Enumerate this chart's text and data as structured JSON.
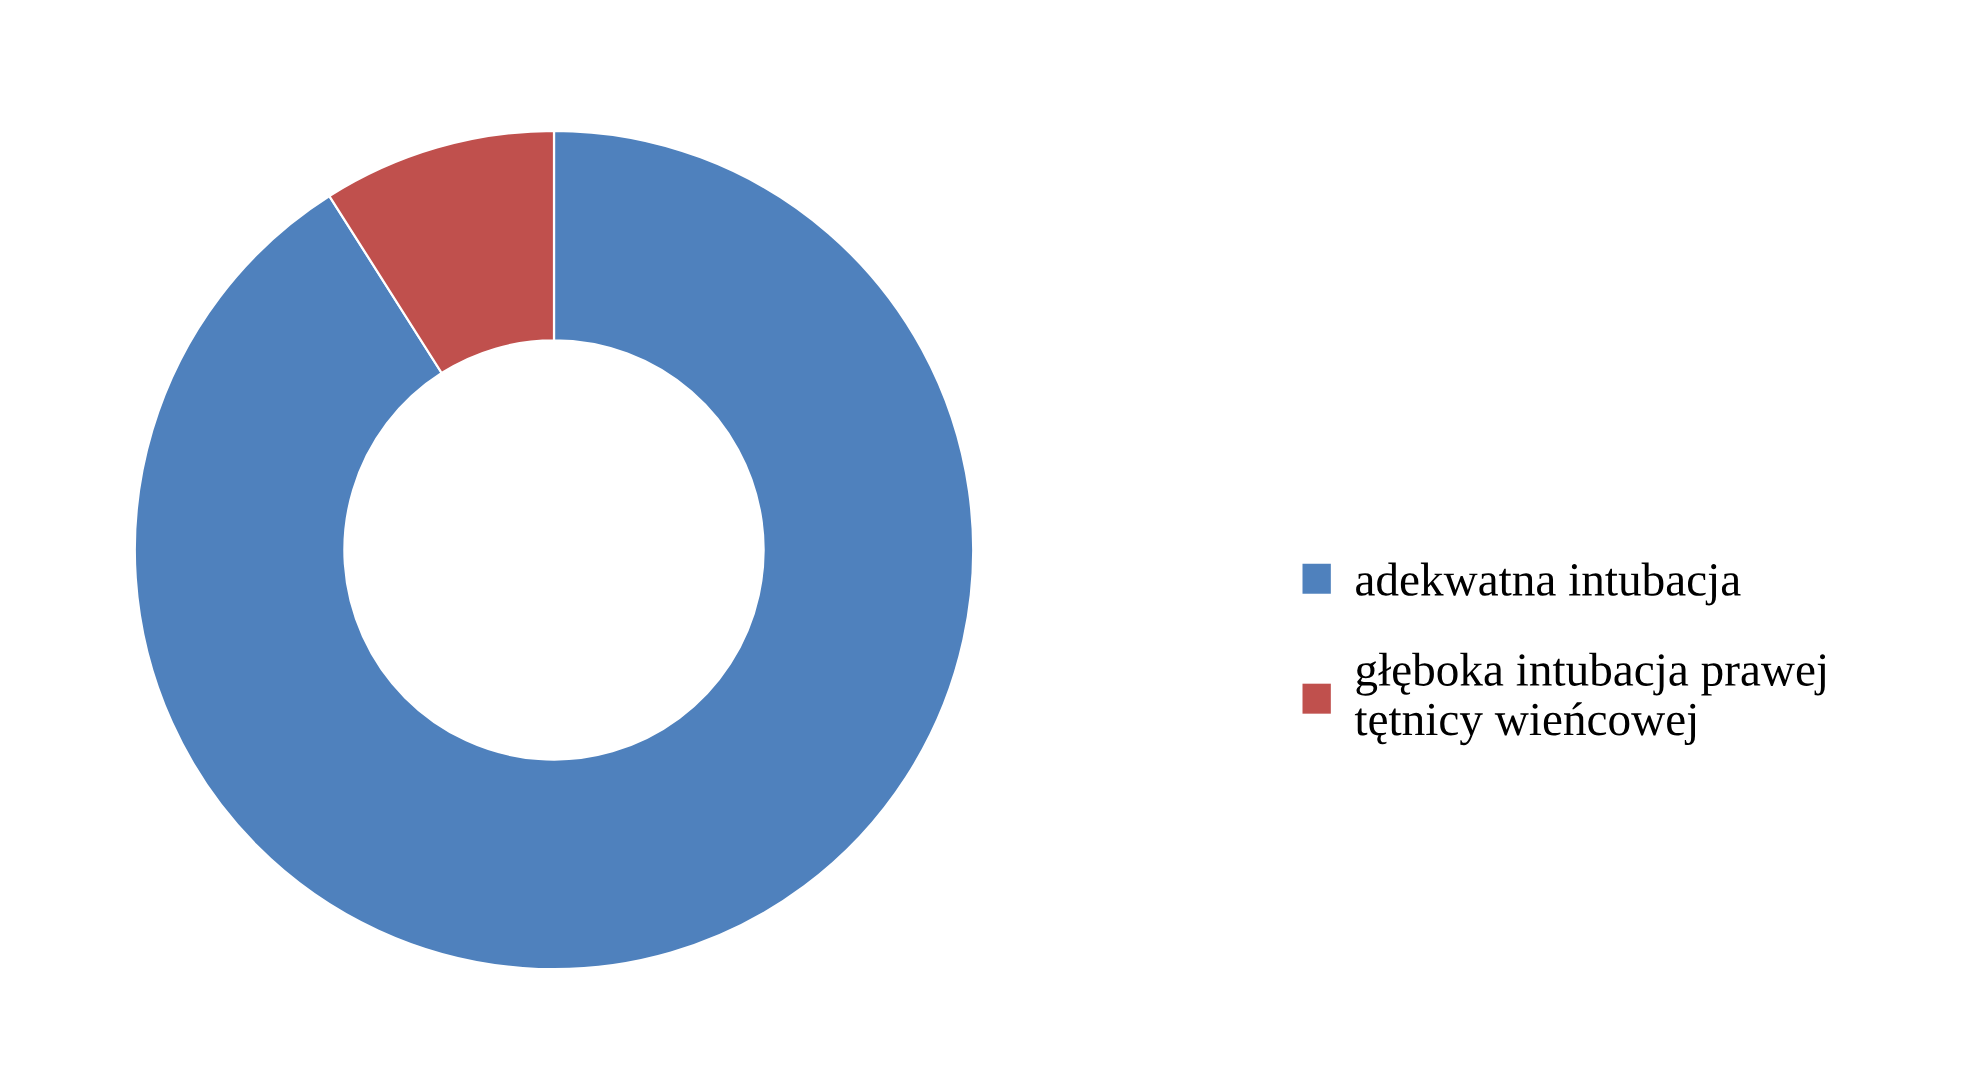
{
  "chart_data": {
    "type": "donut",
    "categories": [
      "adekwatna intubacja",
      "głęboka intubacja prawej\ntętnicy wieńcowej"
    ],
    "values": [
      91,
      9
    ],
    "colors": [
      "#4f81bd",
      "#c0504d"
    ],
    "legend": "right"
  }
}
